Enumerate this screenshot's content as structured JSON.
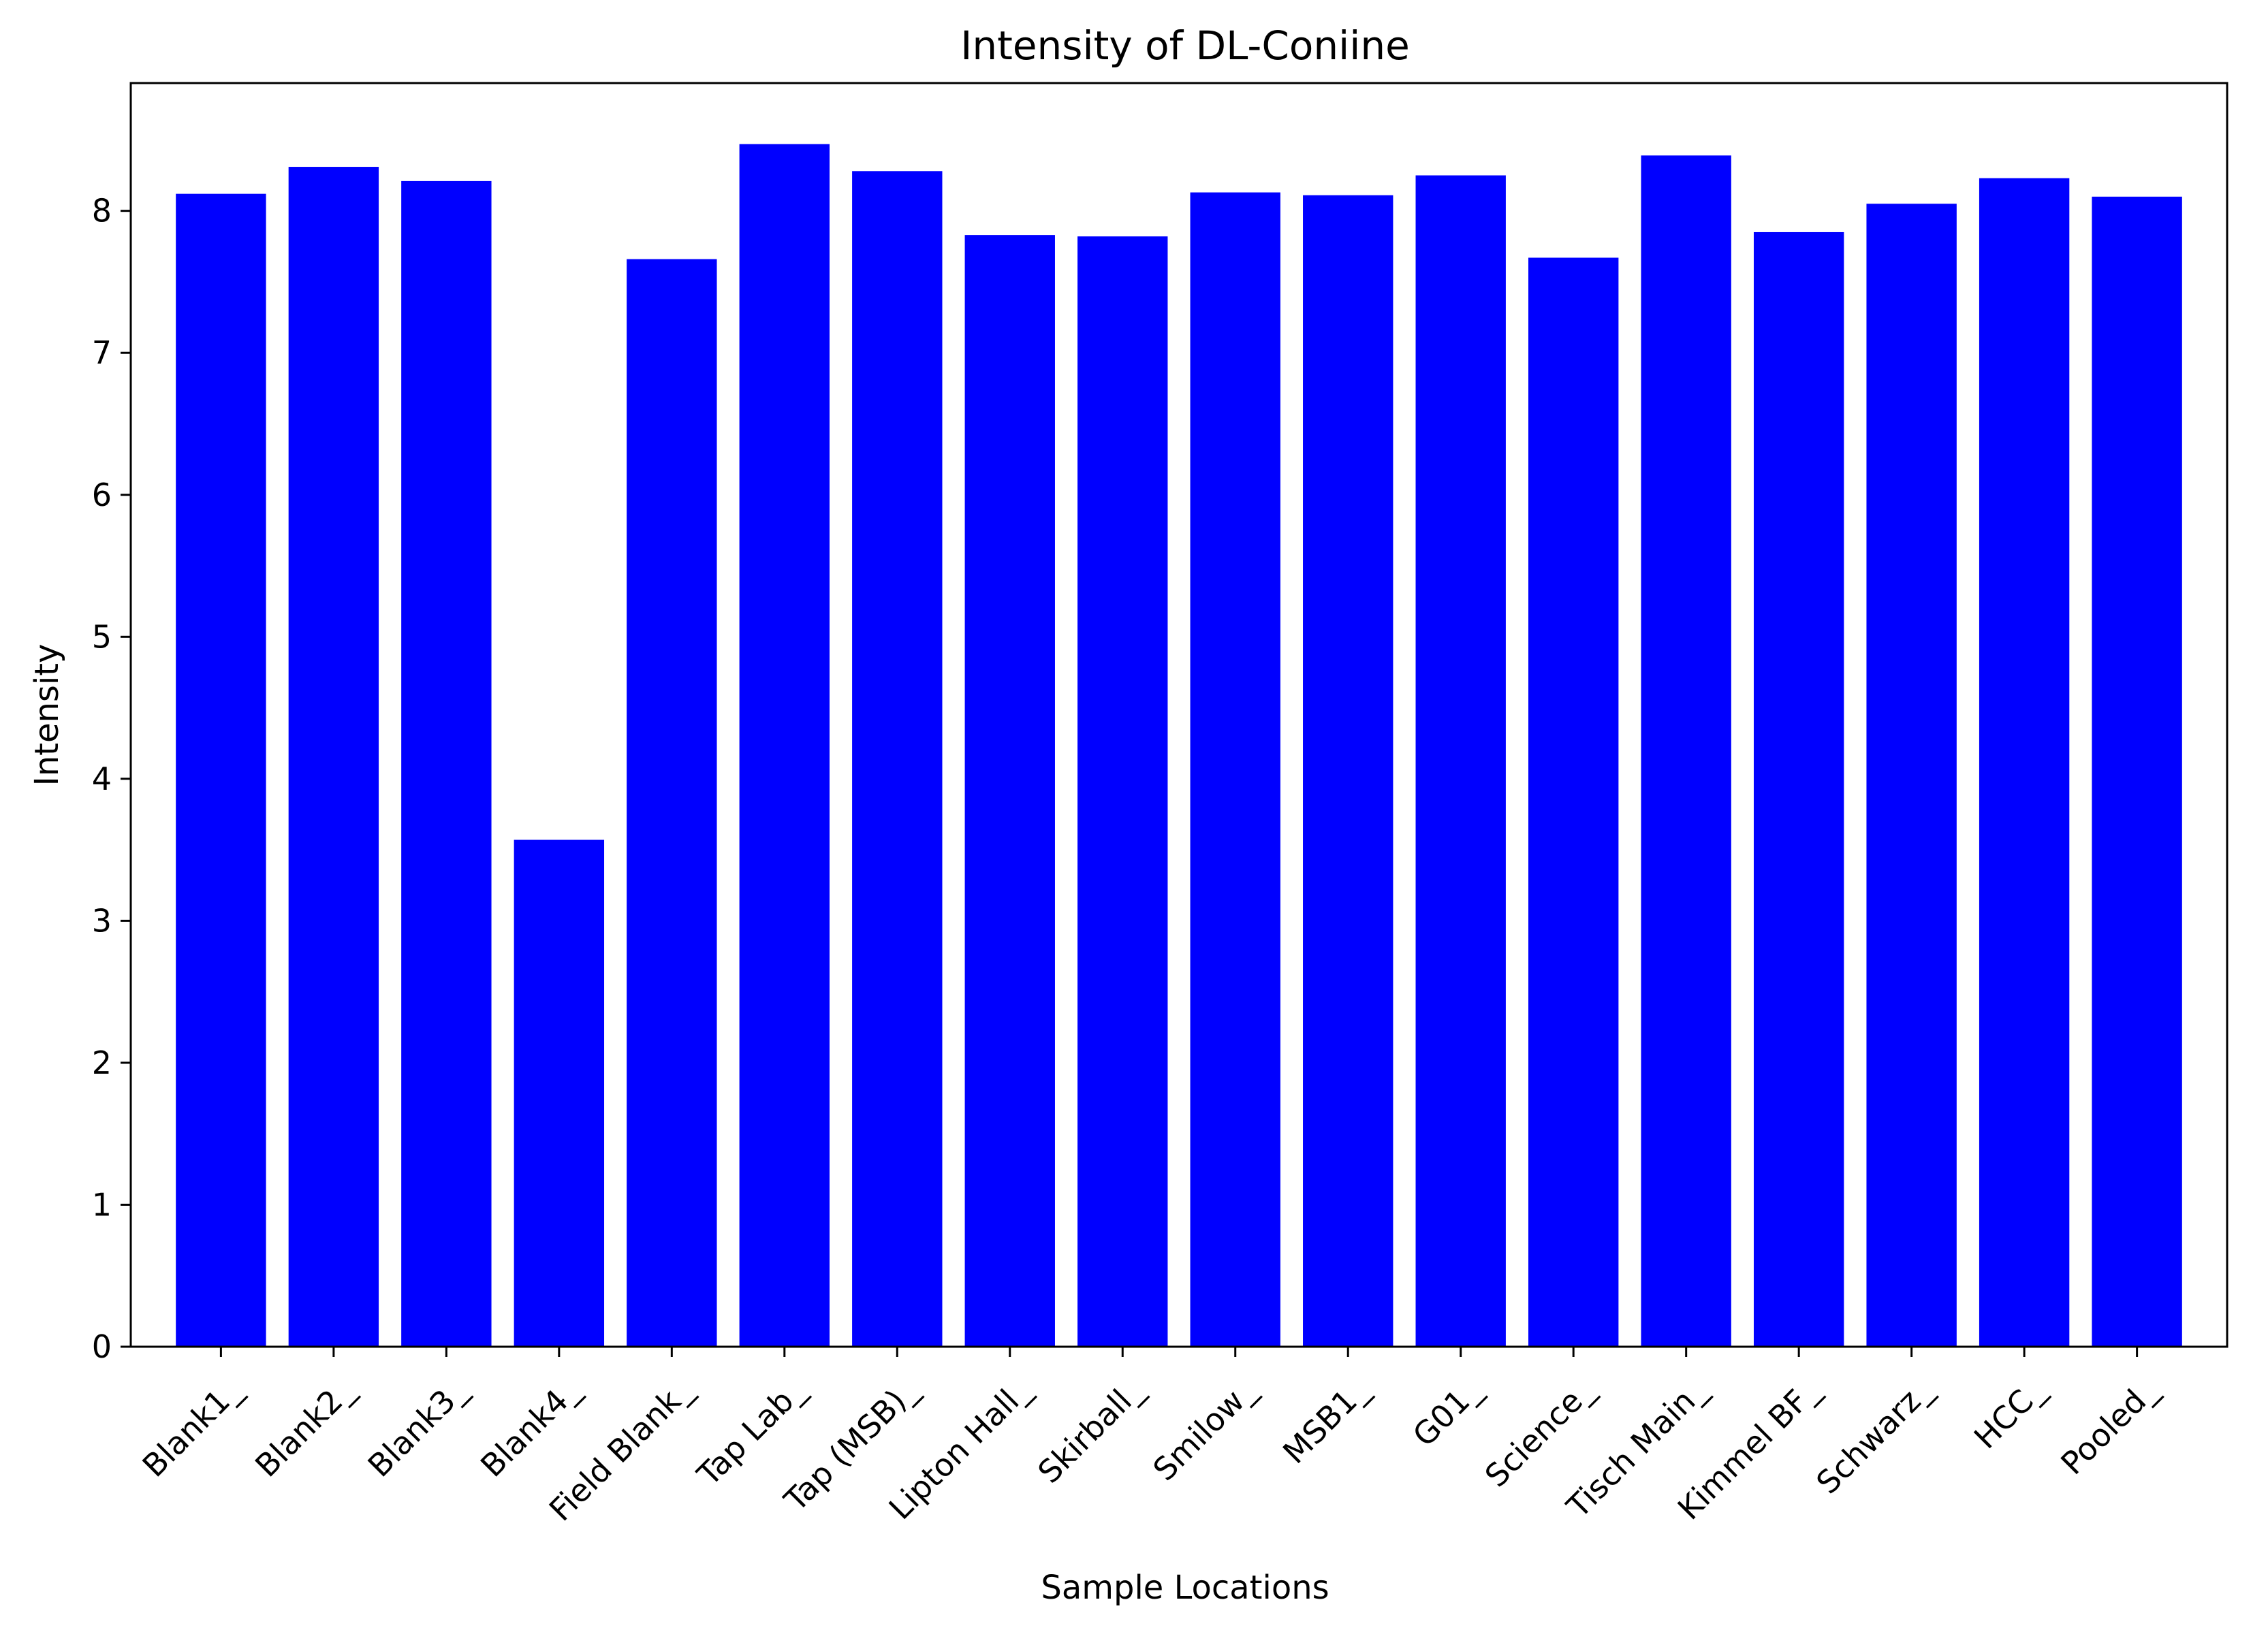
{
  "chart_data": {
    "type": "bar",
    "title": "Intensity of DL-Coniine",
    "xlabel": "Sample Locations",
    "ylabel": "Intensity",
    "ylim": [
      0,
      8.9
    ],
    "yticks": [
      0,
      1,
      2,
      3,
      4,
      5,
      6,
      7,
      8
    ],
    "categories": [
      "Blank1_",
      "Blank2_",
      "Blank3_",
      "Blank4_",
      "Field Blank_",
      "Tap Lab_",
      "Tap (MSB)_",
      "Lipton Hall_",
      "Skirball_",
      "Smilow_",
      "MSB1_",
      "G01_",
      "Science_",
      "Tisch Main_",
      "Kimmel BF_",
      "Schwarz_",
      "HCC_",
      "Pooled_"
    ],
    "values": [
      8.12,
      8.31,
      8.21,
      3.57,
      7.66,
      8.47,
      8.28,
      7.83,
      7.82,
      8.13,
      8.11,
      8.25,
      7.67,
      8.39,
      7.85,
      8.05,
      8.23,
      8.1
    ],
    "bar_color": "#0000ff",
    "grid": false,
    "legend": "none"
  }
}
